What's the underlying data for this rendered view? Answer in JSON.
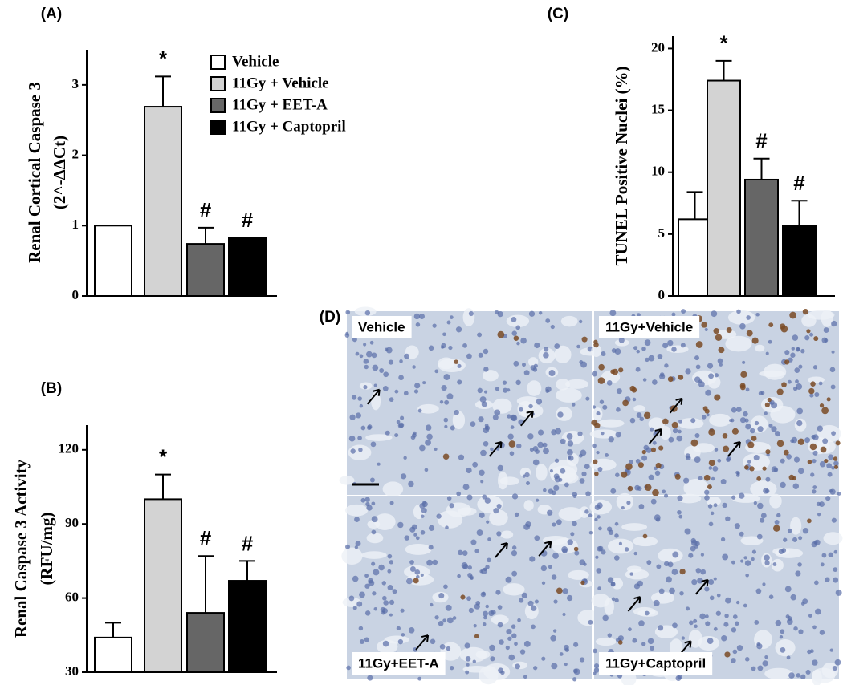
{
  "chart_data": [
    {
      "type": "bar",
      "panel_label": "(A)",
      "ylabel": [
        "Renal Cortical Caspase 3",
        "(2^-ΔΔCt)"
      ],
      "ylim": [
        0,
        3.5
      ],
      "yticks": [
        0,
        1,
        2,
        3
      ],
      "legend": "upper right",
      "series": [
        {
          "name": "Vehicle",
          "color": "#ffffff",
          "values": [
            1.0
          ],
          "errors": [
            null
          ],
          "annotations": [
            null
          ]
        },
        {
          "name": "11Gy + Vehicle",
          "color": "#d3d3d3",
          "values": [
            2.69
          ],
          "errors": [
            0.43
          ],
          "annotations": [
            "*"
          ]
        },
        {
          "name": "11Gy + EET-A",
          "color": "#666666",
          "values": [
            0.74
          ],
          "errors": [
            0.23
          ],
          "annotations": [
            "#"
          ]
        },
        {
          "name": "11Gy + Captopril",
          "color": "#000000",
          "values": [
            0.83
          ],
          "errors": [
            null
          ],
          "annotations": [
            "#"
          ]
        }
      ]
    },
    {
      "type": "bar",
      "panel_label": "(B)",
      "ylabel": [
        "Renal Caspase 3 Activity",
        "(RFU/mg)"
      ],
      "ylim": [
        30,
        130
      ],
      "yticks": [
        30,
        60,
        90,
        120
      ],
      "series": [
        {
          "color": "#ffffff",
          "values": [
            44
          ],
          "errors": [
            6
          ],
          "annotations": [
            null
          ]
        },
        {
          "color": "#d3d3d3",
          "values": [
            100
          ],
          "errors": [
            10
          ],
          "annotations": [
            "*"
          ]
        },
        {
          "color": "#666666",
          "values": [
            54
          ],
          "errors": [
            23
          ],
          "annotations": [
            "#"
          ]
        },
        {
          "color": "#000000",
          "values": [
            67
          ],
          "errors": [
            8
          ],
          "annotations": [
            "#"
          ]
        }
      ]
    },
    {
      "type": "bar",
      "panel_label": "(C)",
      "ylabel": [
        "TUNEL Positive Nuclei (%)"
      ],
      "ylim": [
        0,
        21
      ],
      "yticks": [
        0,
        5,
        10,
        15,
        20
      ],
      "series": [
        {
          "color": "#ffffff",
          "values": [
            6.2
          ],
          "errors": [
            2.2
          ],
          "annotations": [
            null
          ]
        },
        {
          "color": "#d3d3d3",
          "values": [
            17.4
          ],
          "errors": [
            1.6
          ],
          "annotations": [
            "*"
          ]
        },
        {
          "color": "#666666",
          "values": [
            9.4
          ],
          "errors": [
            1.7
          ],
          "annotations": [
            "#"
          ]
        },
        {
          "color": "#000000",
          "values": [
            5.7
          ],
          "errors": [
            2.0
          ],
          "annotations": [
            "#"
          ]
        }
      ]
    }
  ],
  "panel_d": {
    "label": "(D)",
    "images": [
      "Vehicle",
      "11Gy+Vehicle",
      "11Gy+EET-A",
      "11Gy+Captopril"
    ]
  }
}
